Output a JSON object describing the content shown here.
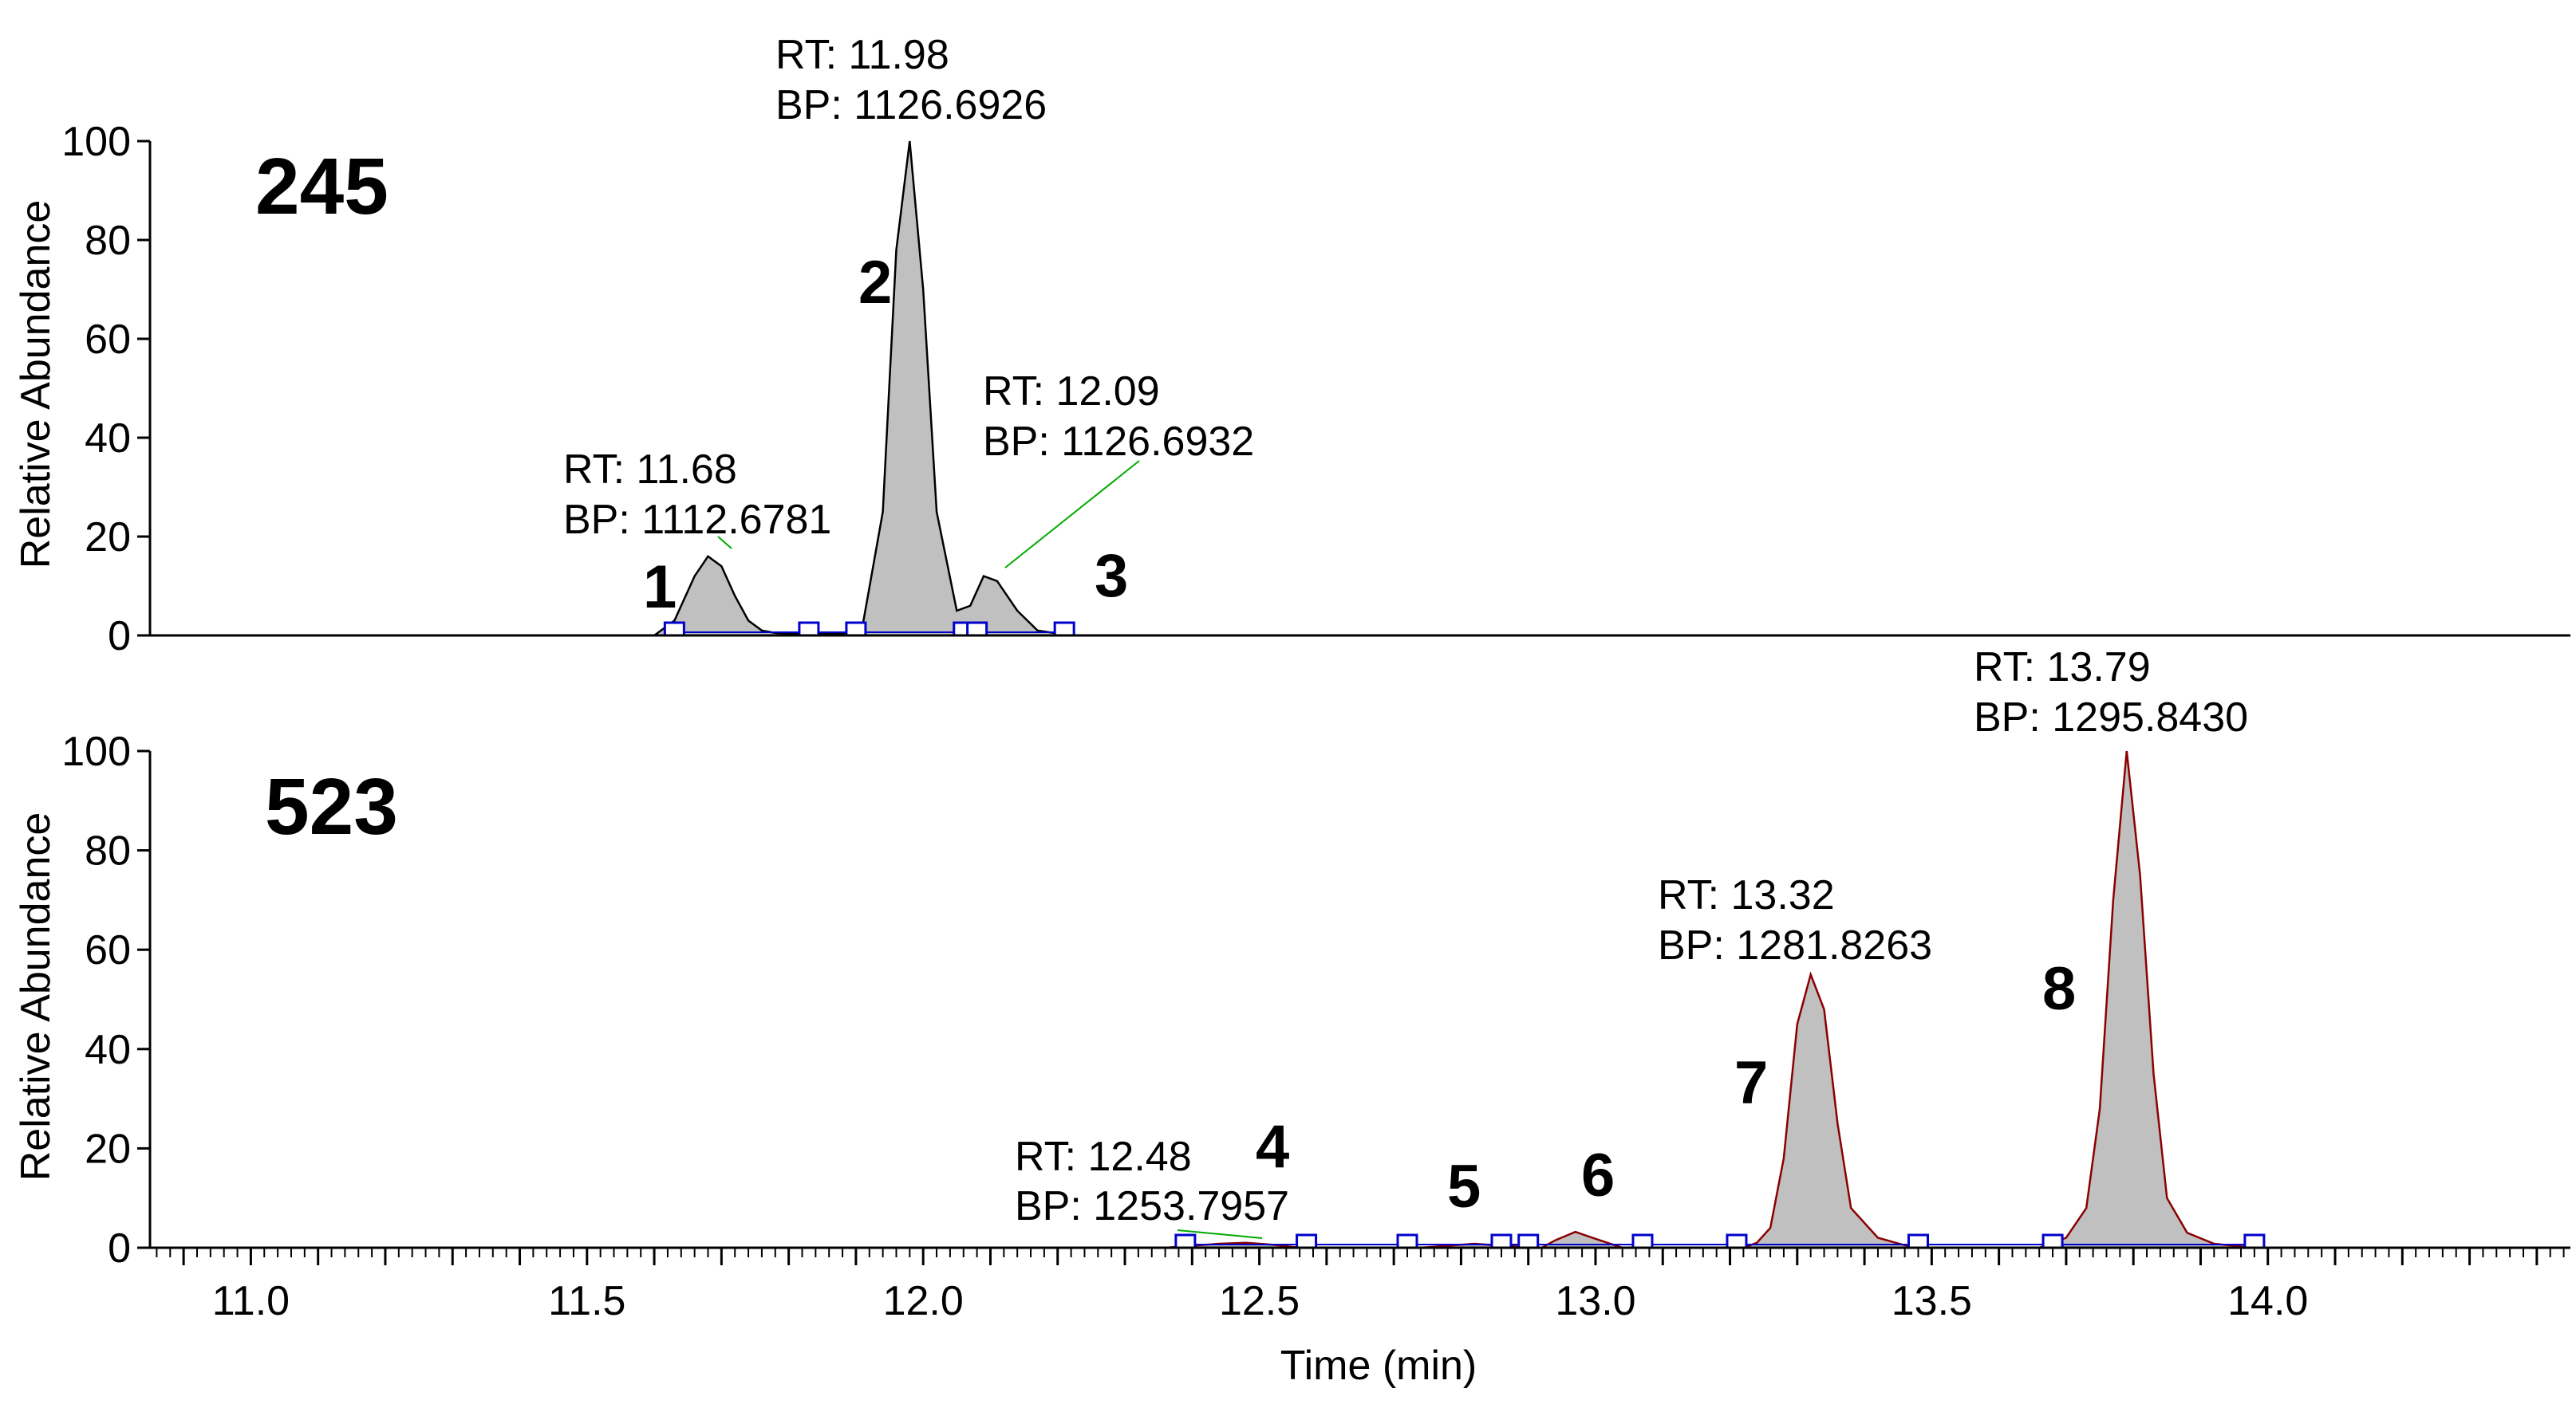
{
  "chart_data": {
    "type": "area",
    "xlabel": "Time (min)",
    "xlim": [
      10.85,
      14.45
    ],
    "x_ticks": [
      "11.0",
      "11.5",
      "12.0",
      "12.5",
      "13.0",
      "13.5",
      "14.0"
    ],
    "panels": [
      {
        "label": "245",
        "ylabel": "Relative Abundance",
        "ylim": [
          0,
          100
        ],
        "y_ticks": [
          "0",
          "20",
          "40",
          "60",
          "80",
          "100"
        ],
        "fill_color": "#c0c0c0",
        "line_color": "#000000",
        "series": [
          {
            "x": [
              11.6,
              11.63,
              11.66,
              11.68,
              11.7,
              11.72,
              11.74,
              11.76,
              11.78,
              11.82,
              11.88,
              11.91,
              11.94,
              11.96,
              11.98,
              12.0,
              12.02,
              12.05,
              12.07,
              12.09,
              12.11,
              12.14,
              12.17,
              12.22
            ],
            "y": [
              0,
              3,
              12,
              16,
              14,
              8,
              3,
              1,
              0.5,
              0.3,
              0.3,
              2,
              25,
              78,
              100,
              70,
              25,
              5,
              6,
              12,
              11,
              5,
              1,
              0
            ]
          }
        ],
        "peaks": [
          {
            "number": "1",
            "rt_label": "RT: 11.68",
            "bp_label": "BP: 1112.6781"
          },
          {
            "number": "2",
            "rt_label": "RT: 11.98",
            "bp_label": "BP: 1126.6926"
          },
          {
            "number": "3",
            "rt_label": "RT: 12.09",
            "bp_label": "BP: 1126.6932"
          }
        ],
        "boundary_markers_x": [
          11.63,
          11.83,
          11.9,
          12.06,
          12.08,
          12.21
        ]
      },
      {
        "label": "523",
        "ylabel": "Relative Abundance",
        "ylim": [
          0,
          100
        ],
        "y_ticks": [
          "0",
          "20",
          "40",
          "60",
          "80",
          "100"
        ],
        "fill_color": "#c0c0c0",
        "line_color": "#8b0000",
        "series": [
          {
            "x": [
              10.85,
              12.36,
              12.4,
              12.44,
              12.48,
              12.52,
              12.56,
              12.74,
              12.78,
              12.82,
              12.86,
              12.92,
              12.94,
              12.97,
              13.0,
              13.04,
              13.22,
              13.24,
              13.26,
              13.28,
              13.3,
              13.32,
              13.34,
              13.36,
              13.38,
              13.42,
              13.46,
              13.5,
              13.66,
              13.7,
              13.73,
              13.75,
              13.77,
              13.79,
              13.81,
              13.83,
              13.85,
              13.88,
              13.92,
              13.98,
              14.1,
              14.45
            ],
            "y": [
              0,
              0,
              0.4,
              0.8,
              1.0,
              0.6,
              0,
              0,
              0.4,
              0.8,
              0.4,
              0,
              1.5,
              3.2,
              1.8,
              0,
              0,
              1,
              4,
              18,
              45,
              55,
              48,
              25,
              8,
              2,
              0.5,
              0,
              0,
              2,
              8,
              28,
              70,
              100,
              75,
              35,
              10,
              3,
              0.8,
              0,
              0,
              0
            ]
          }
        ],
        "peaks": [
          {
            "number": "4",
            "rt_label": "RT: 12.48",
            "bp_label": "BP: 1253.7957"
          },
          {
            "number": "5"
          },
          {
            "number": "6"
          },
          {
            "number": "7",
            "rt_label": "RT: 13.32",
            "bp_label": "BP: 1281.8263"
          },
          {
            "number": "8",
            "rt_label": "RT: 13.79",
            "bp_label": "BP: 1295.8430"
          }
        ],
        "boundary_markers_x": [
          12.39,
          12.57,
          12.72,
          12.86,
          12.9,
          13.07,
          13.21,
          13.48,
          13.68,
          13.98
        ]
      }
    ]
  }
}
